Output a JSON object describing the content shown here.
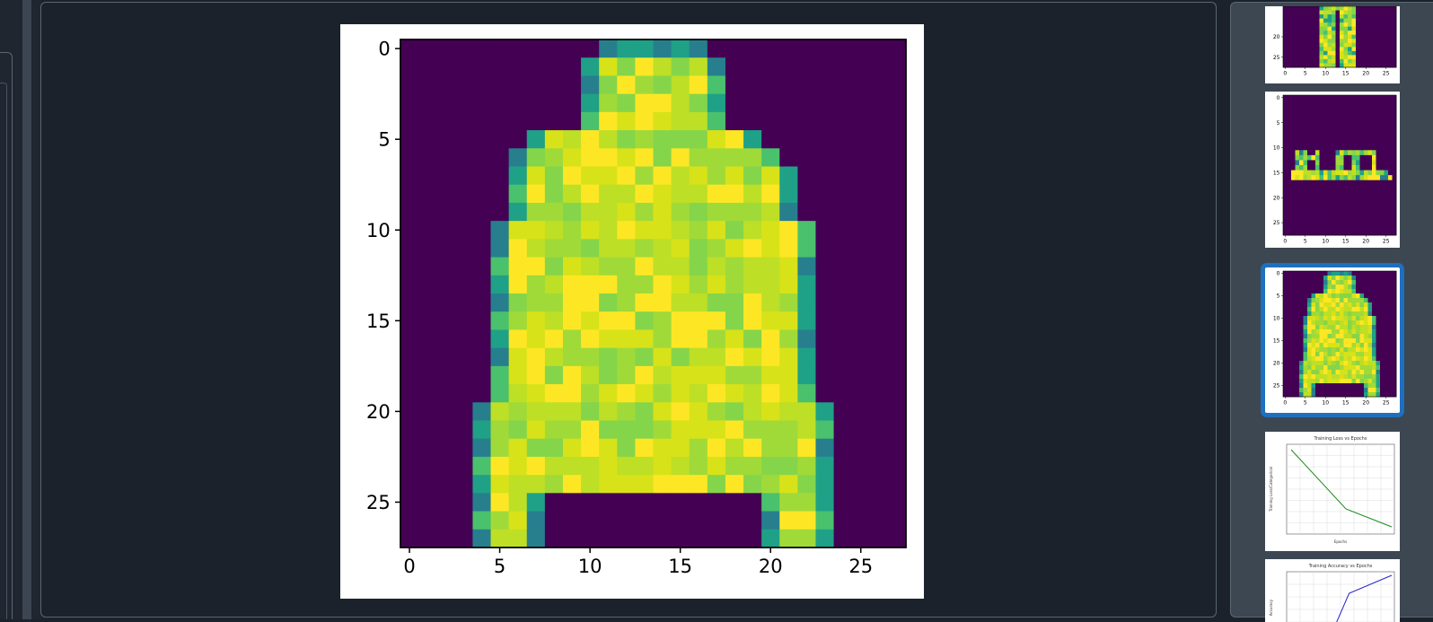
{
  "viewer": {
    "image_name": "fashion-mnist-coat",
    "x_ticks": [
      "0",
      "5",
      "10",
      "15",
      "20",
      "25"
    ],
    "y_ticks": [
      "0",
      "5",
      "10",
      "15",
      "20",
      "25"
    ],
    "background_color": "#440154",
    "fill_color": "#a5d63a"
  },
  "thumbnails": {
    "items": [
      {
        "name": "thumb-image-trouser",
        "kind": "image",
        "x_ticks": [
          "0",
          "5",
          "10",
          "15",
          "20",
          "25"
        ],
        "y_ticks": [
          "20",
          "25"
        ]
      },
      {
        "name": "thumb-image-sandal",
        "kind": "image",
        "x_ticks": [
          "0",
          "5",
          "10",
          "15",
          "20",
          "25"
        ],
        "y_ticks": [
          "0",
          "5",
          "10",
          "15",
          "20",
          "25"
        ]
      },
      {
        "name": "thumb-image-coat",
        "kind": "image",
        "selected": true,
        "x_ticks": [
          "0",
          "5",
          "10",
          "15",
          "20",
          "25"
        ],
        "y_ticks": [
          "0",
          "5",
          "10",
          "15",
          "20",
          "25"
        ]
      },
      {
        "name": "thumb-chart-loss",
        "kind": "chart",
        "title": "Training Loss vs Epochs",
        "xlabel": "Epochs",
        "ylabel": "Training Loss/Categorical",
        "line_color": "#1a8a1a"
      },
      {
        "name": "thumb-chart-accuracy",
        "kind": "chart",
        "title": "Training Accuracy vs Epochs",
        "ylabel": "Accuracy",
        "line_color": "#2222cc"
      }
    ]
  }
}
